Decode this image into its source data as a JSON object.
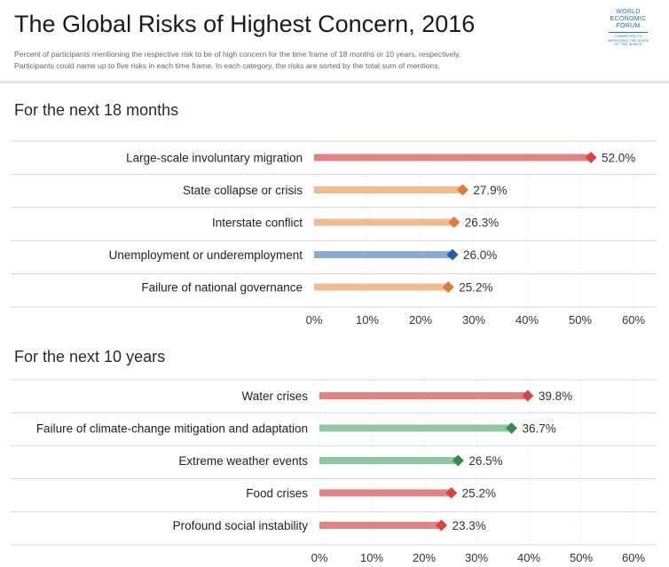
{
  "header": {
    "title": "The Global Risks of Highest Concern, 2016",
    "subtitle_line1": "Percent of participants mentioning the respective risk to be of high concern for the time frame of 18 months or 10 years, respectively.",
    "subtitle_line2": "Participants could name up to five risks in each time frame. In each category, the risks are sorted by the total sum of mentions."
  },
  "logo": {
    "line1": "WORLD",
    "line2": "ECONOMIC",
    "line3": "FORUM",
    "tagline1": "COMMITTED TO",
    "tagline2": "IMPROVING THE STATE",
    "tagline3": "OF THE WORLD"
  },
  "colors": {
    "societal": "#e28383",
    "societal_marker": "#d9453a",
    "geopolitical": "#f0bb8e",
    "geopolitical_marker": "#e07b38",
    "economic": "#8aabd4",
    "economic_marker": "#1f5fa8",
    "environmental": "#8ec79e",
    "environmental_marker": "#3a8a4c"
  },
  "chart_data": [
    {
      "type": "bar",
      "title": "For the next 18 months",
      "categories": [
        "Large-scale involuntary migration",
        "State collapse or crisis",
        "Interstate conflict",
        "Unemployment or underemployment",
        "Failure of national governance"
      ],
      "values": [
        52.0,
        27.9,
        26.3,
        26.0,
        25.2
      ],
      "value_labels": [
        "52.0%",
        "27.9%",
        "26.3%",
        "26.0%",
        "25.2%"
      ],
      "groups": [
        "societal",
        "geopolitical",
        "geopolitical",
        "economic",
        "geopolitical"
      ],
      "xlim": [
        0,
        60
      ],
      "ticks": [
        0,
        10,
        20,
        30,
        40,
        50,
        60
      ],
      "tick_labels": [
        "0%",
        "10%",
        "20%",
        "30%",
        "40%",
        "50%",
        "60%"
      ],
      "grid": true,
      "legend": "none"
    },
    {
      "type": "bar",
      "title": "For the next 10 years",
      "categories": [
        "Water crises",
        "Failure of climate-change mitigation and adaptation",
        "Extreme weather events",
        "Food crises",
        "Profound social instability"
      ],
      "values": [
        39.8,
        36.7,
        26.5,
        25.2,
        23.3
      ],
      "value_labels": [
        "39.8%",
        "36.7%",
        "26.5%",
        "25.2%",
        "23.3%"
      ],
      "groups": [
        "societal",
        "environmental",
        "environmental",
        "societal",
        "societal"
      ],
      "xlim": [
        0,
        60
      ],
      "ticks": [
        0,
        10,
        20,
        30,
        40,
        50,
        60
      ],
      "tick_labels": [
        "0%",
        "10%",
        "20%",
        "30%",
        "40%",
        "50%",
        "60%"
      ],
      "grid": true,
      "legend": "none"
    }
  ]
}
